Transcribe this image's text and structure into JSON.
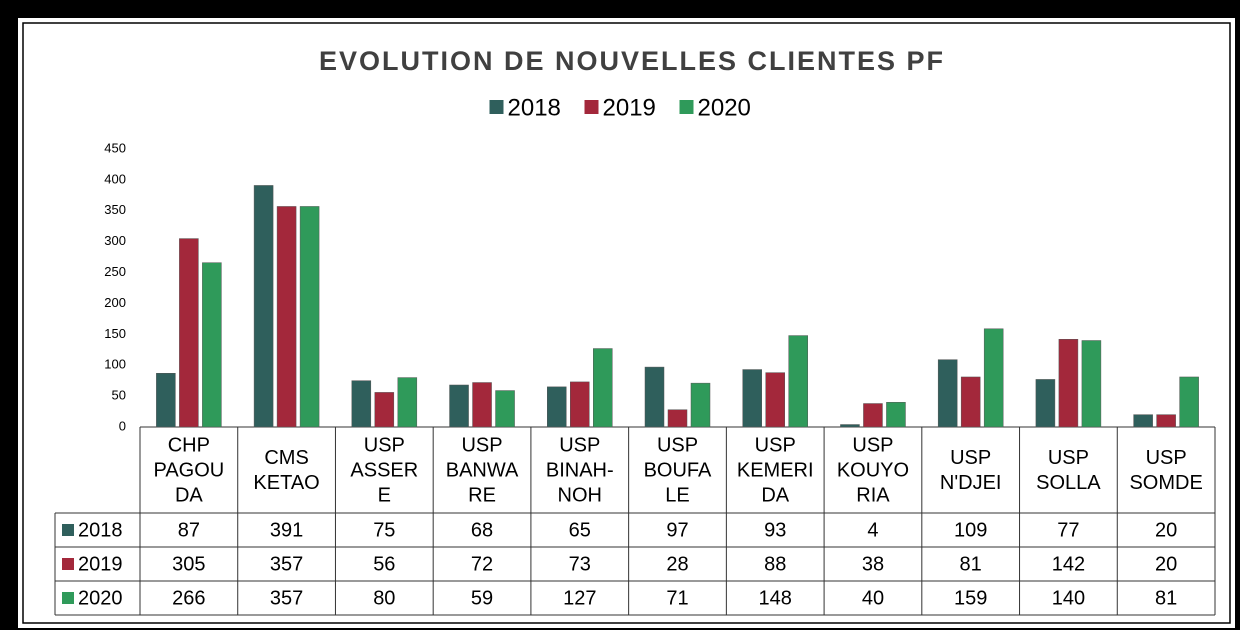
{
  "chart_data": {
    "type": "bar",
    "title": "EVOLUTION DE NOUVELLES CLIENTES PF",
    "categories": [
      [
        "CHP",
        "PAGOU",
        "DA"
      ],
      [
        "CMS",
        "KETAO"
      ],
      [
        "USP",
        "ASSER",
        "E"
      ],
      [
        "USP",
        "BANWA",
        "RE"
      ],
      [
        "USP",
        "BINAH-",
        "NOH"
      ],
      [
        "USP",
        "BOUFA",
        "LE"
      ],
      [
        "USP",
        "KEMERI",
        "DA"
      ],
      [
        "USP",
        "KOUYO",
        "RIA"
      ],
      [
        "USP",
        "N'DJEI"
      ],
      [
        "USP",
        "SOLLA"
      ],
      [
        "USP",
        "SOMDE"
      ]
    ],
    "series": [
      {
        "name": "2018",
        "color": "#2f5f5c",
        "values": [
          87,
          391,
          75,
          68,
          65,
          97,
          93,
          4,
          109,
          77,
          20
        ]
      },
      {
        "name": "2019",
        "color": "#a3283b",
        "values": [
          305,
          357,
          56,
          72,
          73,
          28,
          88,
          38,
          81,
          142,
          20
        ]
      },
      {
        "name": "2020",
        "color": "#2f9a5a",
        "values": [
          266,
          357,
          80,
          59,
          127,
          71,
          148,
          40,
          159,
          140,
          81
        ]
      }
    ],
    "ylim": [
      0,
      450
    ],
    "yticks": [
      0,
      50,
      100,
      150,
      200,
      250,
      300,
      350,
      400,
      450
    ],
    "grid": false,
    "legend": "top"
  }
}
